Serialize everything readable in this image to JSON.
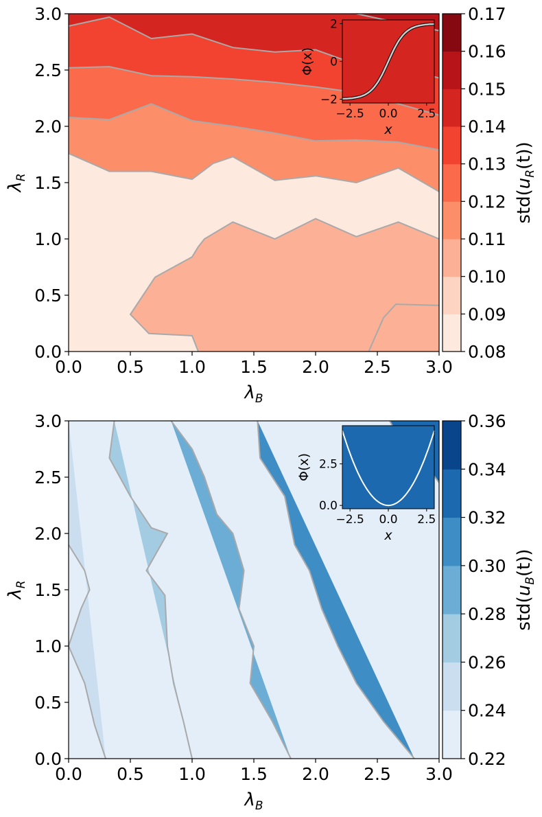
{
  "figure": {
    "panels": [
      {
        "id": "top",
        "xlabel": "λ",
        "xlabel_sub": "B",
        "ylabel": "λ",
        "ylabel_sub": "R",
        "xticks": [
          "0.0",
          "0.5",
          "1.0",
          "1.5",
          "2.0",
          "2.5",
          "3.0"
        ],
        "yticks": [
          "0.0",
          "0.5",
          "1.0",
          "1.5",
          "2.0",
          "2.5",
          "3.0"
        ],
        "colorbar": {
          "label_pre": "std(",
          "label_var": "u",
          "label_sub": "R",
          "label_post": "(t))",
          "ticks": [
            "0.08",
            "0.09",
            "0.10",
            "0.11",
            "0.12",
            "0.13",
            "0.14",
            "0.15",
            "0.16",
            "0.17"
          ],
          "colors": [
            "#fee9de",
            "#fdd3c1",
            "#fcb197",
            "#fc8e6a",
            "#fb6a4a",
            "#f1432f",
            "#d52521",
            "#b61419",
            "#860811"
          ]
        },
        "inset": {
          "xlabel": "x",
          "ylabel": "Φ(x)",
          "xticks": [
            "−2.5",
            "0.0",
            "2.5"
          ],
          "yticks": [
            "−2",
            "0",
            "2"
          ],
          "fill": "#d52521"
        }
      },
      {
        "id": "bottom",
        "xlabel": "λ",
        "xlabel_sub": "B",
        "ylabel": "λ",
        "ylabel_sub": "R",
        "xticks": [
          "0.0",
          "0.5",
          "1.0",
          "1.5",
          "2.0",
          "2.5",
          "3.0"
        ],
        "yticks": [
          "0.0",
          "0.5",
          "1.0",
          "1.5",
          "2.0",
          "2.5",
          "3.0"
        ],
        "colorbar": {
          "label_pre": "std(",
          "label_var": "u",
          "label_sub": "B",
          "label_post": "(t))",
          "ticks": [
            "0.22",
            "0.24",
            "0.26",
            "0.28",
            "0.30",
            "0.32",
            "0.34",
            "0.36"
          ],
          "colors": [
            "#e4eef9",
            "#cbdef0",
            "#a3cbe2",
            "#6cadd5",
            "#3e8dc5",
            "#1c69af",
            "#08458a"
          ]
        },
        "inset": {
          "xlabel": "x",
          "ylabel": "Φ(x)",
          "xticks": [
            "−2.5",
            "0.0",
            "2.5"
          ],
          "yticks": [
            "0.0",
            "2.5"
          ],
          "fill": "#1c69af"
        }
      }
    ]
  },
  "chart_data": [
    {
      "type": "heatmap",
      "xlabel": "λB",
      "ylabel": "λR",
      "xlim": [
        0,
        3
      ],
      "ylim": [
        0,
        3
      ],
      "colorbar_label": "std(uR(t))",
      "levels": [
        0.08,
        0.09,
        0.1,
        0.11,
        0.12,
        0.13,
        0.14,
        0.15,
        0.16,
        0.17
      ],
      "contours": [
        {
          "level": 0.09,
          "points": [
            [
              2.43,
              0
            ],
            [
              2.55,
              0.3
            ],
            [
              2.65,
              0.42
            ],
            [
              3.0,
              0.41
            ]
          ]
        },
        {
          "level": 0.1,
          "points": [
            [
              1.05,
              0
            ],
            [
              1.0,
              0.14
            ],
            [
              0.65,
              0.16
            ],
            [
              0.5,
              0.33
            ],
            [
              0.7,
              0.66
            ],
            [
              1.0,
              0.84
            ],
            [
              1.05,
              0.93
            ],
            [
              1.1,
              1.0
            ],
            [
              1.33,
              1.15
            ],
            [
              1.67,
              1.0
            ],
            [
              2.0,
              1.18
            ],
            [
              2.33,
              1.02
            ],
            [
              2.67,
              1.15
            ],
            [
              3.0,
              1.0
            ]
          ]
        },
        {
          "level": 0.11,
          "points": [
            [
              0,
              1.76
            ],
            [
              0.33,
              1.6
            ],
            [
              0.67,
              1.6
            ],
            [
              1.0,
              1.53
            ],
            [
              1.17,
              1.67
            ],
            [
              1.33,
              1.73
            ],
            [
              1.67,
              1.52
            ],
            [
              2.0,
              1.56
            ],
            [
              2.33,
              1.5
            ],
            [
              2.67,
              1.63
            ],
            [
              3.0,
              1.42
            ]
          ]
        },
        {
          "level": 0.12,
          "points": [
            [
              0,
              2.08
            ],
            [
              0.33,
              2.06
            ],
            [
              0.67,
              2.2
            ],
            [
              1.0,
              2.05
            ],
            [
              1.33,
              2.0
            ],
            [
              1.67,
              1.94
            ],
            [
              2.0,
              1.87
            ],
            [
              2.33,
              1.88
            ],
            [
              2.67,
              1.86
            ],
            [
              3.0,
              1.79
            ]
          ]
        },
        {
          "level": 0.13,
          "points": [
            [
              0,
              2.52
            ],
            [
              0.33,
              2.53
            ],
            [
              0.67,
              2.45
            ],
            [
              1.0,
              2.44
            ],
            [
              1.33,
              2.42
            ],
            [
              1.67,
              2.39
            ],
            [
              2.0,
              2.35
            ],
            [
              2.33,
              2.3
            ],
            [
              2.67,
              2.2
            ],
            [
              3.0,
              2.1
            ]
          ]
        },
        {
          "level": 0.14,
          "points": [
            [
              0,
              2.89
            ],
            [
              0.33,
              2.97
            ],
            [
              0.67,
              2.78
            ],
            [
              1.0,
              2.82
            ],
            [
              1.33,
              2.7
            ],
            [
              1.67,
              2.66
            ],
            [
              2.0,
              2.68
            ],
            [
              2.33,
              2.55
            ],
            [
              2.67,
              2.52
            ],
            [
              3.0,
              2.43
            ]
          ]
        },
        {
          "level": 0.15,
          "points": [
            [
              2.33,
              3.0
            ],
            [
              2.67,
              2.92
            ],
            [
              3.0,
              2.85
            ]
          ]
        }
      ],
      "inset": {
        "function": "tanh-like sigmoid",
        "xlim": [
          -3,
          3
        ],
        "ylim": [
          -2.2,
          2.2
        ],
        "xlabel": "x",
        "ylabel": "Φ(x)"
      }
    },
    {
      "type": "heatmap",
      "xlabel": "λB",
      "ylabel": "λR",
      "xlim": [
        0,
        3
      ],
      "ylim": [
        0,
        3
      ],
      "colorbar_label": "std(uB(t))",
      "levels": [
        0.22,
        0.24,
        0.26,
        0.28,
        0.3,
        0.32,
        0.34,
        0.36
      ],
      "contours": [
        {
          "level": 0.24,
          "points": [
            [
              0,
              1.9
            ],
            [
              0.13,
              1.67
            ],
            [
              0.17,
              1.5
            ],
            [
              0.1,
              1.33
            ],
            [
              0,
              1.0
            ],
            [
              0.13,
              0.67
            ],
            [
              0.21,
              0.3
            ],
            [
              0.3,
              0
            ]
          ]
        },
        {
          "level": 0.26,
          "points": [
            [
              0.37,
              3.0
            ],
            [
              0.33,
              2.67
            ],
            [
              0.5,
              2.33
            ],
            [
              0.67,
              2.05
            ],
            [
              0.8,
              2.0
            ],
            [
              0.63,
              1.67
            ],
            [
              0.78,
              1.45
            ],
            [
              0.8,
              1.0
            ],
            [
              0.85,
              0.67
            ],
            [
              0.93,
              0.33
            ],
            [
              1.0,
              0
            ]
          ]
        },
        {
          "level": 0.28,
          "points": [
            [
              0.83,
              3.0
            ],
            [
              1.0,
              2.75
            ],
            [
              1.1,
              2.5
            ],
            [
              1.2,
              2.17
            ],
            [
              1.33,
              2.0
            ],
            [
              1.42,
              1.67
            ],
            [
              1.38,
              1.33
            ],
            [
              1.5,
              1.0
            ],
            [
              1.47,
              0.67
            ],
            [
              1.65,
              0.33
            ],
            [
              1.8,
              0
            ]
          ]
        },
        {
          "level": 0.3,
          "points": [
            [
              1.53,
              3.0
            ],
            [
              1.55,
              2.67
            ],
            [
              1.75,
              2.33
            ],
            [
              1.83,
              1.9
            ],
            [
              1.95,
              1.67
            ],
            [
              2.05,
              1.33
            ],
            [
              2.18,
              1.0
            ],
            [
              2.33,
              0.67
            ],
            [
              2.55,
              0.33
            ],
            [
              2.8,
              0
            ]
          ]
        },
        {
          "level": 0.32,
          "points": [
            [
              2.6,
              3.0
            ],
            [
              2.7,
              2.8
            ],
            [
              2.9,
              2.6
            ],
            [
              3.0,
              2.45
            ]
          ]
        }
      ],
      "inset": {
        "function": "parabola x^2/2",
        "xlim": [
          -3,
          3
        ],
        "ylim": [
          -0.2,
          4.8
        ],
        "xlabel": "x",
        "ylabel": "Φ(x)"
      }
    }
  ]
}
